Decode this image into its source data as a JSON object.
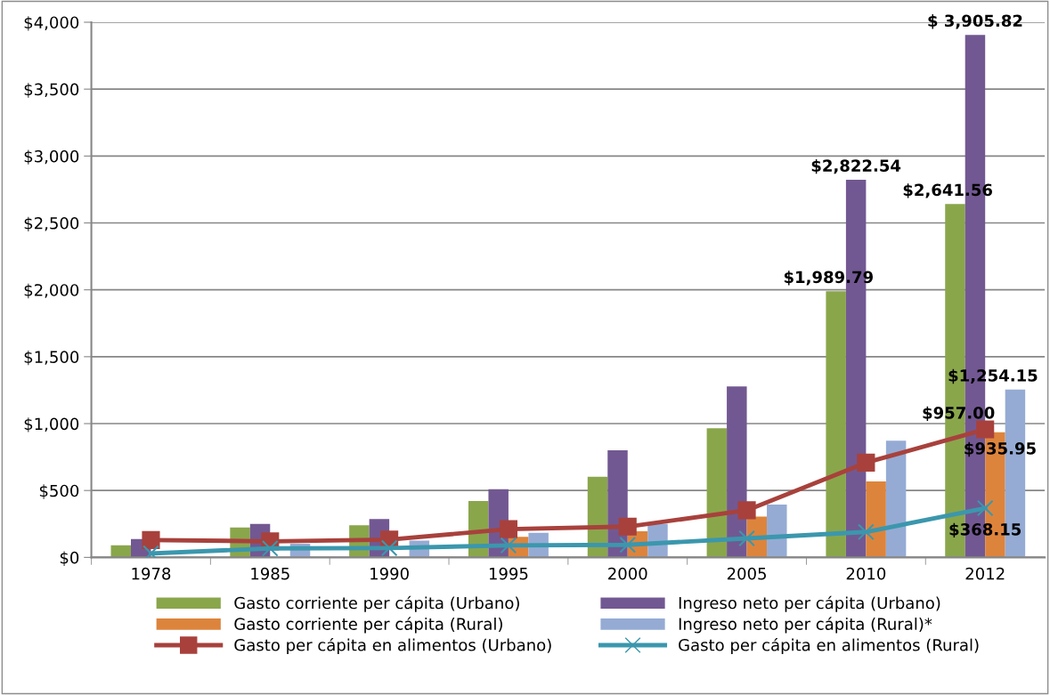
{
  "chart_data": {
    "type": "bar",
    "categories": [
      "1978",
      "1985",
      "1990",
      "1995",
      "2000",
      "2005",
      "2010",
      "2012"
    ],
    "series": [
      {
        "name": "Gasto corriente per cápita (Urbano)",
        "color": "#8aa64b",
        "values": [
          90,
          223,
          241,
          421,
          602,
          965,
          1989.79,
          2641.56
        ],
        "value_labels": [
          null,
          null,
          null,
          null,
          null,
          null,
          "$1,989.79",
          "$2,641.56"
        ]
      },
      {
        "name": "Ingreso neto per cápita (Urbano)",
        "color": "#725892",
        "values": [
          137,
          250,
          287,
          510,
          800,
          1278,
          2822.54,
          3905.82
        ],
        "value_labels": [
          null,
          null,
          null,
          null,
          null,
          null,
          "$2,822.54",
          "$ 3,905.82"
        ]
      },
      {
        "name": "Gasto corriente per cápita (Rural)",
        "color": "#dd843c",
        "values": [
          null,
          null,
          null,
          154,
          196,
          305,
          567,
          935.95
        ],
        "value_labels": [
          null,
          null,
          null,
          null,
          null,
          null,
          null,
          "$935.95"
        ]
      },
      {
        "name": "Ingreso neto per cápita (Rural)*",
        "color": "#95abd4",
        "values": [
          null,
          103,
          126,
          183,
          252,
          395,
          872,
          1254.15
        ],
        "value_labels": [
          null,
          null,
          null,
          null,
          null,
          null,
          null,
          "$1,254.15"
        ]
      },
      {
        "name": "Gasto per cápita en alimentos (Urbano)",
        "color": "#a8413c",
        "type": "line",
        "marker": "square",
        "values": [
          130,
          120,
          133,
          211,
          230,
          352,
          708,
          957.0
        ],
        "value_labels": [
          null,
          null,
          null,
          null,
          null,
          null,
          null,
          "$957.00"
        ]
      },
      {
        "name": "Gasto per cápita en alimentos (Rural)",
        "color": "#3b97ad",
        "type": "line",
        "marker": "cross",
        "values": [
          30,
          67,
          70,
          90,
          94,
          142,
          190,
          368.15
        ],
        "value_labels": [
          null,
          null,
          null,
          null,
          null,
          null,
          null,
          "$368.15"
        ]
      }
    ],
    "ylim": [
      0,
      4000
    ],
    "yticks": [
      {
        "value": 0,
        "label": "$0"
      },
      {
        "value": 500,
        "label": "$500"
      },
      {
        "value": 1000,
        "label": "$1,000"
      },
      {
        "value": 1500,
        "label": "$1,500"
      },
      {
        "value": 2000,
        "label": "$2,000"
      },
      {
        "value": 2500,
        "label": "$2,500"
      },
      {
        "value": 3000,
        "label": "$3,000"
      },
      {
        "value": 3500,
        "label": "$3,500"
      },
      {
        "value": 4000,
        "label": "$4,000"
      }
    ],
    "grid": "y",
    "legend": "bottom"
  }
}
